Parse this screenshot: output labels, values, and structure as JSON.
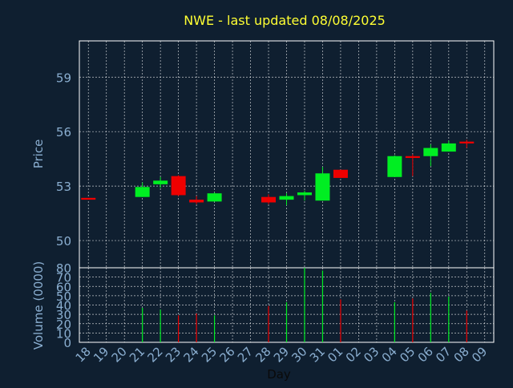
{
  "chart_data": {
    "type": "candlestick",
    "title": "NWE - last updated 08/08/2025",
    "price_panel": {
      "ylabel": "Price",
      "ylim": [
        48.5,
        61.0
      ],
      "yticks": [
        50,
        53,
        56,
        59
      ],
      "grid": true
    },
    "volume_panel": {
      "ylabel": "Volume (0000)",
      "ylim": [
        0,
        80
      ],
      "yticks": [
        0,
        10,
        20,
        30,
        40,
        50,
        60,
        70,
        80
      ],
      "grid": true
    },
    "xlabel": "Day",
    "days": [
      "18",
      "19",
      "20",
      "21",
      "22",
      "23",
      "24",
      "25",
      "26",
      "27",
      "28",
      "29",
      "30",
      "31",
      "01",
      "02",
      "03",
      "04",
      "05",
      "06",
      "07",
      "08",
      "09"
    ],
    "candles": [
      {
        "day": "18",
        "open": 52.35,
        "high": 52.35,
        "low": 52.25,
        "close": 52.25,
        "volume": 0
      },
      {
        "day": "21",
        "open": 52.4,
        "high": 53.2,
        "low": 52.4,
        "close": 52.95,
        "volume": 37
      },
      {
        "day": "22",
        "open": 53.1,
        "high": 53.5,
        "low": 52.9,
        "close": 53.3,
        "volume": 35
      },
      {
        "day": "23",
        "open": 53.55,
        "high": 53.6,
        "low": 52.45,
        "close": 52.5,
        "volume": 29
      },
      {
        "day": "24",
        "open": 52.25,
        "high": 52.45,
        "low": 52.0,
        "close": 52.1,
        "volume": 31
      },
      {
        "day": "25",
        "open": 52.15,
        "high": 52.65,
        "low": 52.15,
        "close": 52.6,
        "volume": 29
      },
      {
        "day": "28",
        "open": 52.4,
        "high": 52.55,
        "low": 52.0,
        "close": 52.1,
        "volume": 39
      },
      {
        "day": "29",
        "open": 52.25,
        "high": 52.6,
        "low": 51.95,
        "close": 52.45,
        "volume": 43
      },
      {
        "day": "30",
        "open": 52.5,
        "high": 52.75,
        "low": 52.2,
        "close": 52.65,
        "volume": 80
      },
      {
        "day": "31",
        "open": 52.2,
        "high": 54.05,
        "low": 52.2,
        "close": 53.7,
        "volume": 77
      },
      {
        "day": "01",
        "open": 53.9,
        "high": 53.9,
        "low": 53.45,
        "close": 53.45,
        "volume": 46
      },
      {
        "day": "04",
        "open": 53.5,
        "high": 54.7,
        "low": 53.5,
        "close": 54.65,
        "volume": 43
      },
      {
        "day": "05",
        "open": 54.65,
        "high": 54.75,
        "low": 53.55,
        "close": 54.55,
        "volume": 47
      },
      {
        "day": "06",
        "open": 54.65,
        "high": 55.3,
        "low": 54.1,
        "close": 55.1,
        "volume": 53
      },
      {
        "day": "07",
        "open": 54.9,
        "high": 55.5,
        "low": 54.9,
        "close": 55.35,
        "volume": 49
      },
      {
        "day": "08",
        "open": 55.45,
        "high": 55.55,
        "low": 55.1,
        "close": 55.35,
        "volume": 34
      }
    ],
    "colors": {
      "background": "#0f1f30",
      "up": "#00ee22",
      "down": "#ee0000",
      "title": "#ffff33",
      "axis_text": "#8aaed0",
      "frame": "#ffffff",
      "grid": "#ffffff"
    }
  }
}
